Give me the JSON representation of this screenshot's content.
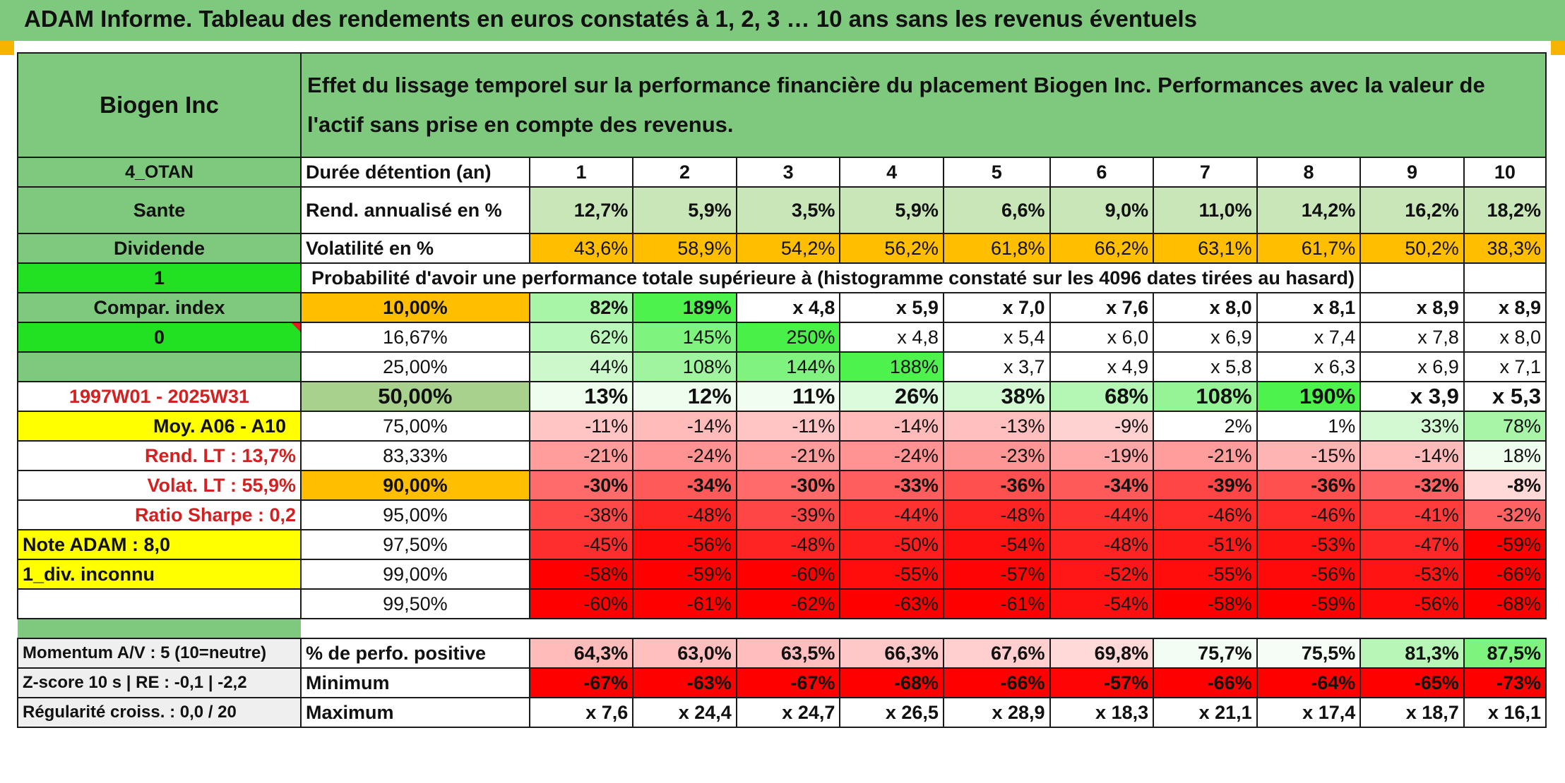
{
  "title": "ADAM Informe. Tableau des rendements en euros constatés à 1, 2, 3 … 10 ans sans les revenus éventuels",
  "company": "Biogen Inc",
  "header_text": "Effet du lissage temporel sur la performance financière du placement Biogen Inc. Performances avec la valeur de l'actif sans prise en compte des revenus.",
  "left_labels": {
    "otan": "4_OTAN",
    "sector": "Sante",
    "dividende": "Dividende",
    "one": "1",
    "compar": "Compar. index",
    "zero": "0",
    "period": "1997W01 - 2025W31",
    "moy": "Moy. A06 - A10",
    "rend_lt": "Rend. LT :    13,7%",
    "volat_lt": "Volat. LT :    55,9%",
    "sharpe": "Ratio Sharpe :    0,2",
    "note": "Note ADAM : 8,0",
    "div": "1_div. inconnu",
    "momentum": "Momentum A/V : 5 (10=neutre)",
    "zscore": "Z-score 10 s | RE : -0,1 | -2,2",
    "regul": "Régularité croiss. : 0,0 / 20"
  },
  "row_labels": {
    "duree": "Durée détention (an)",
    "rend": "Rend. annualisé en %",
    "volat": "Volatilité en %",
    "proba": "Probabilité d'avoir une performance totale supérieure à (histogramme constaté sur les 4096 dates tirées au hasard)",
    "positive": "% de perfo. positive",
    "minimum": "Minimum",
    "maximum": "Maximum"
  },
  "years": [
    "1",
    "2",
    "3",
    "4",
    "5",
    "6",
    "7",
    "8",
    "9",
    "10"
  ],
  "rendements": [
    "12,7%",
    "5,9%",
    "3,5%",
    "5,9%",
    "6,6%",
    "9,0%",
    "11,0%",
    "14,2%",
    "16,2%",
    "18,2%"
  ],
  "volatilites": [
    "43,6%",
    "58,9%",
    "54,2%",
    "56,2%",
    "61,8%",
    "66,2%",
    "63,1%",
    "61,7%",
    "50,2%",
    "38,3%"
  ],
  "proba_rows": [
    {
      "threshold": "10,00%",
      "values": [
        "82%",
        "189%",
        "x 4,8",
        "x 5,9",
        "x 7,0",
        "x 7,6",
        "x 8,0",
        "x 8,1",
        "x 8,9",
        "x 8,9"
      ],
      "colors": [
        "#a8f5a8",
        "#4df24d",
        "#ffffff",
        "#ffffff",
        "#ffffff",
        "#ffffff",
        "#ffffff",
        "#ffffff",
        "#ffffff",
        "#ffffff"
      ]
    },
    {
      "threshold": "16,67%",
      "values": [
        "62%",
        "145%",
        "250%",
        "x 4,8",
        "x 5,4",
        "x 6,0",
        "x 6,9",
        "x 7,4",
        "x 7,8",
        "x 8,0"
      ],
      "colors": [
        "#baf7ba",
        "#7ef37e",
        "#48f048",
        "#ffffff",
        "#ffffff",
        "#ffffff",
        "#ffffff",
        "#ffffff",
        "#ffffff",
        "#ffffff"
      ]
    },
    {
      "threshold": "25,00%",
      "values": [
        "44%",
        "108%",
        "144%",
        "188%",
        "x 3,7",
        "x 4,9",
        "x 5,8",
        "x 6,3",
        "x 6,9",
        "x 7,1"
      ],
      "colors": [
        "#ccf8cc",
        "#a0f4a0",
        "#80f280",
        "#4df24d",
        "#ffffff",
        "#ffffff",
        "#ffffff",
        "#ffffff",
        "#ffffff",
        "#ffffff"
      ]
    },
    {
      "threshold": "50,00%",
      "values": [
        "13%",
        "12%",
        "11%",
        "26%",
        "38%",
        "68%",
        "108%",
        "190%",
        "x 3,9",
        "x 5,3"
      ],
      "colors": [
        "#eefdee",
        "#effdef",
        "#f0fdf0",
        "#dcfadc",
        "#d2f9d2",
        "#b4f6b4",
        "#96f496",
        "#4df24d",
        "#ffffff",
        "#ffffff"
      ]
    },
    {
      "threshold": "75,00%",
      "values": [
        "-11%",
        "-14%",
        "-11%",
        "-14%",
        "-13%",
        "-9%",
        "2%",
        "1%",
        "33%",
        "78%"
      ],
      "colors": [
        "#ffc4c4",
        "#ffbaba",
        "#ffc4c4",
        "#ffbaba",
        "#ffbfbf",
        "#ffd2d2",
        "#ffffff",
        "#ffffff",
        "#d2f9d2",
        "#a8f5a8"
      ]
    },
    {
      "threshold": "83,33%",
      "values": [
        "-21%",
        "-24%",
        "-21%",
        "-24%",
        "-23%",
        "-19%",
        "-21%",
        "-15%",
        "-14%",
        "18%"
      ],
      "colors": [
        "#ff9c9c",
        "#ff9292",
        "#ff9c9c",
        "#ff9292",
        "#ff9696",
        "#ffa6a6",
        "#ff9c9c",
        "#ffb4b4",
        "#ffbaba",
        "#eefdee"
      ]
    },
    {
      "threshold": "90,00%",
      "values": [
        "-30%",
        "-34%",
        "-30%",
        "-33%",
        "-36%",
        "-34%",
        "-39%",
        "-36%",
        "-32%",
        "-8%"
      ],
      "colors": [
        "#ff6a6a",
        "#ff5a5a",
        "#ff6a6a",
        "#ff5e5e",
        "#ff5050",
        "#ff5a5a",
        "#ff4646",
        "#ff5050",
        "#ff6262",
        "#ffd8d8"
      ]
    },
    {
      "threshold": "95,00%",
      "values": [
        "-38%",
        "-48%",
        "-39%",
        "-44%",
        "-48%",
        "-44%",
        "-46%",
        "-46%",
        "-41%",
        "-32%"
      ],
      "colors": [
        "#ff4848",
        "#ff2424",
        "#ff4646",
        "#ff3232",
        "#ff2424",
        "#ff3232",
        "#ff2a2a",
        "#ff2a2a",
        "#ff3c3c",
        "#ff6262"
      ]
    },
    {
      "threshold": "97,50%",
      "values": [
        "-45%",
        "-56%",
        "-48%",
        "-50%",
        "-54%",
        "-48%",
        "-51%",
        "-53%",
        "-47%",
        "-59%"
      ],
      "colors": [
        "#ff2e2e",
        "#ff0a0a",
        "#ff2424",
        "#ff1e1e",
        "#ff1010",
        "#ff2424",
        "#ff1a1a",
        "#ff1414",
        "#ff2828",
        "#ff0000"
      ]
    },
    {
      "threshold": "99,00%",
      "values": [
        "-58%",
        "-59%",
        "-60%",
        "-55%",
        "-57%",
        "-52%",
        "-55%",
        "-56%",
        "-53%",
        "-66%"
      ],
      "colors": [
        "#ff0000",
        "#ff0000",
        "#ff0000",
        "#ff0c0c",
        "#ff0404",
        "#ff1616",
        "#ff0c0c",
        "#ff0a0a",
        "#ff1414",
        "#ff0000"
      ]
    },
    {
      "threshold": "99,50%",
      "values": [
        "-60%",
        "-61%",
        "-62%",
        "-63%",
        "-61%",
        "-54%",
        "-58%",
        "-59%",
        "-56%",
        "-68%"
      ],
      "colors": [
        "#ff0000",
        "#ff0000",
        "#ff0000",
        "#ff0000",
        "#ff0000",
        "#ff1010",
        "#ff0000",
        "#ff0000",
        "#ff0a0a",
        "#ff0000"
      ]
    }
  ],
  "perfo_positive": [
    "64,3%",
    "63,0%",
    "63,5%",
    "66,3%",
    "67,6%",
    "69,8%",
    "75,7%",
    "75,5%",
    "81,3%",
    "87,5%"
  ],
  "perfo_positive_colors": [
    "#ffbaba",
    "#ffbfbf",
    "#ffbdbd",
    "#ffc8c8",
    "#ffcece",
    "#ffd8d8",
    "#f4fdf4",
    "#f6fdf6",
    "#b8f6b8",
    "#7ef37e"
  ],
  "minimum": [
    "-67%",
    "-63%",
    "-67%",
    "-68%",
    "-66%",
    "-57%",
    "-66%",
    "-64%",
    "-65%",
    "-73%"
  ],
  "maximum": [
    "x 7,6",
    "x 24,4",
    "x 24,7",
    "x 26,5",
    "x 28,9",
    "x 18,3",
    "x 21,1",
    "x 17,4",
    "x 18,7",
    "x 16,1"
  ],
  "colors": {
    "header_green": "#7fc97f",
    "light_green": "#c8e6b8",
    "orange": "#ffbf00",
    "yellow": "#ffff00",
    "bright_green": "#22e022",
    "red": "#ff0000",
    "label_red": "#d42020"
  }
}
